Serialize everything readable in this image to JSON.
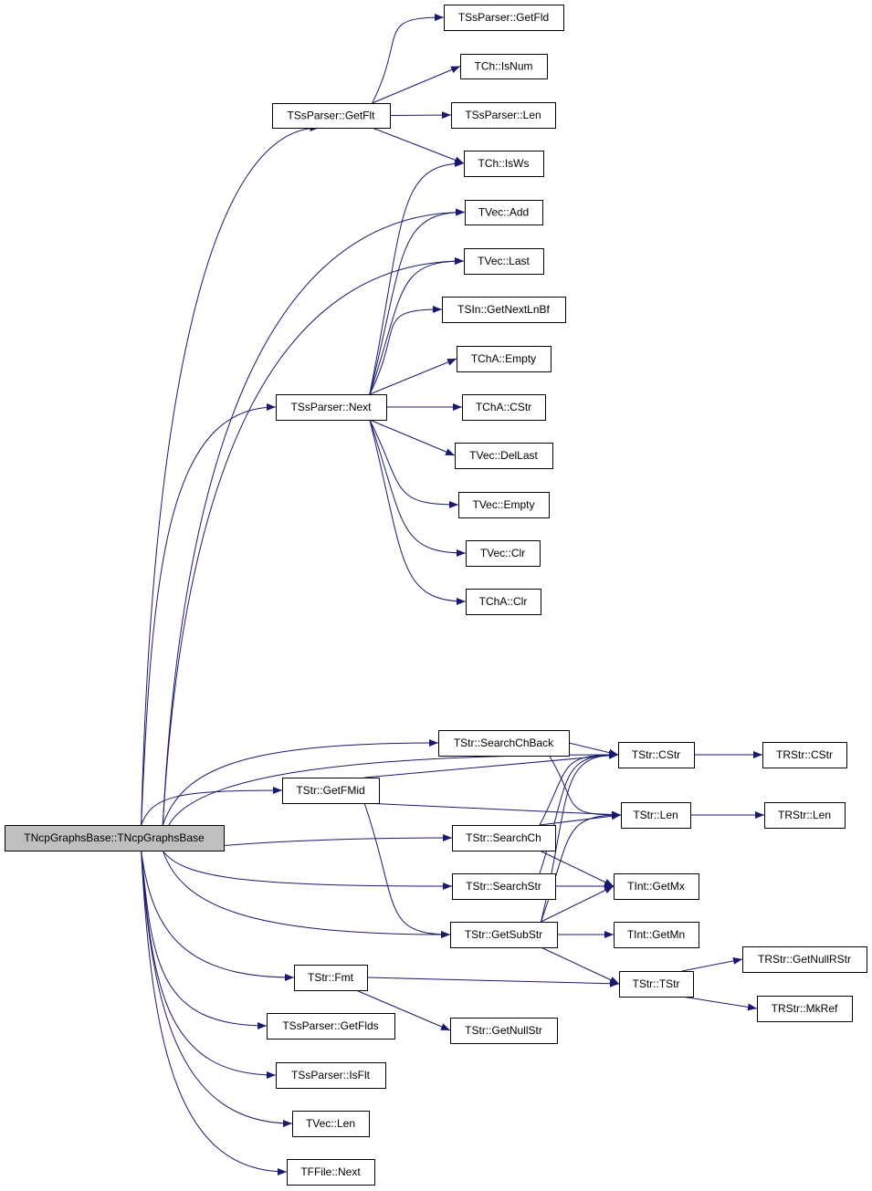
{
  "colors": {
    "edge": "#191970",
    "root_fill": "#bfbfbf",
    "node_fill": "#ffffff",
    "node_border": "#000000"
  },
  "nodes": [
    {
      "id": "root",
      "label": "TNcpGraphsBase::TNcpGraphsBase"
    },
    {
      "id": "getflt",
      "label": "TSsParser::GetFlt"
    },
    {
      "id": "getfld",
      "label": "TSsParser::GetFld"
    },
    {
      "id": "isnum",
      "label": "TCh::IsNum"
    },
    {
      "id": "sslen",
      "label": "TSsParser::Len"
    },
    {
      "id": "isws",
      "label": "TCh::IsWs"
    },
    {
      "id": "vadd",
      "label": "TVec::Add"
    },
    {
      "id": "vlast",
      "label": "TVec::Last"
    },
    {
      "id": "getnextlnbf",
      "label": "TSIn::GetNextLnBf"
    },
    {
      "id": "chaempty",
      "label": "TChA::Empty"
    },
    {
      "id": "chacstr",
      "label": "TChA::CStr"
    },
    {
      "id": "vdellast",
      "label": "TVec::DelLast"
    },
    {
      "id": "vempty",
      "label": "TVec::Empty"
    },
    {
      "id": "vclr",
      "label": "TVec::Clr"
    },
    {
      "id": "chaclr",
      "label": "TChA::Clr"
    },
    {
      "id": "ssnext",
      "label": "TSsParser::Next"
    },
    {
      "id": "searchchback",
      "label": "TStr::SearchChBack"
    },
    {
      "id": "strcstr",
      "label": "TStr::CStr"
    },
    {
      "id": "rstrcstr",
      "label": "TRStr::CStr"
    },
    {
      "id": "getfmid",
      "label": "TStr::GetFMid"
    },
    {
      "id": "strlen",
      "label": "TStr::Len"
    },
    {
      "id": "rstrlen",
      "label": "TRStr::Len"
    },
    {
      "id": "searchch",
      "label": "TStr::SearchCh"
    },
    {
      "id": "searchstr",
      "label": "TStr::SearchStr"
    },
    {
      "id": "getmx",
      "label": "TInt::GetMx"
    },
    {
      "id": "getsubstr",
      "label": "TStr::GetSubStr"
    },
    {
      "id": "getmn",
      "label": "TInt::GetMn"
    },
    {
      "id": "getnullrstr",
      "label": "TRStr::GetNullRStr"
    },
    {
      "id": "strtstr",
      "label": "TStr::TStr"
    },
    {
      "id": "mkref",
      "label": "TRStr::MkRef"
    },
    {
      "id": "fmt",
      "label": "TStr::Fmt"
    },
    {
      "id": "getnullstr",
      "label": "TStr::GetNullStr"
    },
    {
      "id": "getflds",
      "label": "TSsParser::GetFlds"
    },
    {
      "id": "isflt",
      "label": "TSsParser::IsFlt"
    },
    {
      "id": "vlen",
      "label": "TVec::Len"
    },
    {
      "id": "ffnext",
      "label": "TFFile::Next"
    }
  ],
  "edges": [
    [
      "getflt",
      "getfld"
    ],
    [
      "getflt",
      "isnum"
    ],
    [
      "getflt",
      "sslen"
    ],
    [
      "getflt",
      "isws"
    ],
    [
      "ssnext",
      "isws"
    ],
    [
      "ssnext",
      "vadd"
    ],
    [
      "ssnext",
      "vlast"
    ],
    [
      "ssnext",
      "getnextlnbf"
    ],
    [
      "ssnext",
      "chaempty"
    ],
    [
      "ssnext",
      "chacstr"
    ],
    [
      "ssnext",
      "vdellast"
    ],
    [
      "ssnext",
      "vempty"
    ],
    [
      "ssnext",
      "vclr"
    ],
    [
      "ssnext",
      "chaclr"
    ],
    [
      "root",
      "getflt"
    ],
    [
      "root",
      "vadd"
    ],
    [
      "root",
      "vlast"
    ],
    [
      "root",
      "ssnext"
    ],
    [
      "root",
      "strcstr"
    ],
    [
      "root",
      "searchchback"
    ],
    [
      "root",
      "getfmid"
    ],
    [
      "root",
      "searchch"
    ],
    [
      "root",
      "searchstr"
    ],
    [
      "root",
      "getsubstr"
    ],
    [
      "root",
      "fmt"
    ],
    [
      "root",
      "getflds"
    ],
    [
      "root",
      "isflt"
    ],
    [
      "root",
      "vlen"
    ],
    [
      "root",
      "ffnext"
    ],
    [
      "searchchback",
      "strcstr"
    ],
    [
      "searchchback",
      "strlen"
    ],
    [
      "getfmid",
      "strcstr"
    ],
    [
      "getfmid",
      "strlen"
    ],
    [
      "getfmid",
      "getsubstr"
    ],
    [
      "strcstr",
      "rstrcstr"
    ],
    [
      "strlen",
      "rstrlen"
    ],
    [
      "searchch",
      "strcstr"
    ],
    [
      "searchch",
      "strlen"
    ],
    [
      "searchch",
      "getmx"
    ],
    [
      "searchstr",
      "strcstr"
    ],
    [
      "searchstr",
      "getmx"
    ],
    [
      "getsubstr",
      "strcstr"
    ],
    [
      "getsubstr",
      "strlen"
    ],
    [
      "getsubstr",
      "getmx"
    ],
    [
      "getsubstr",
      "getmn"
    ],
    [
      "getsubstr",
      "strtstr"
    ],
    [
      "fmt",
      "strtstr"
    ],
    [
      "fmt",
      "getnullstr"
    ],
    [
      "strtstr",
      "getnullrstr"
    ],
    [
      "strtstr",
      "mkref"
    ]
  ]
}
